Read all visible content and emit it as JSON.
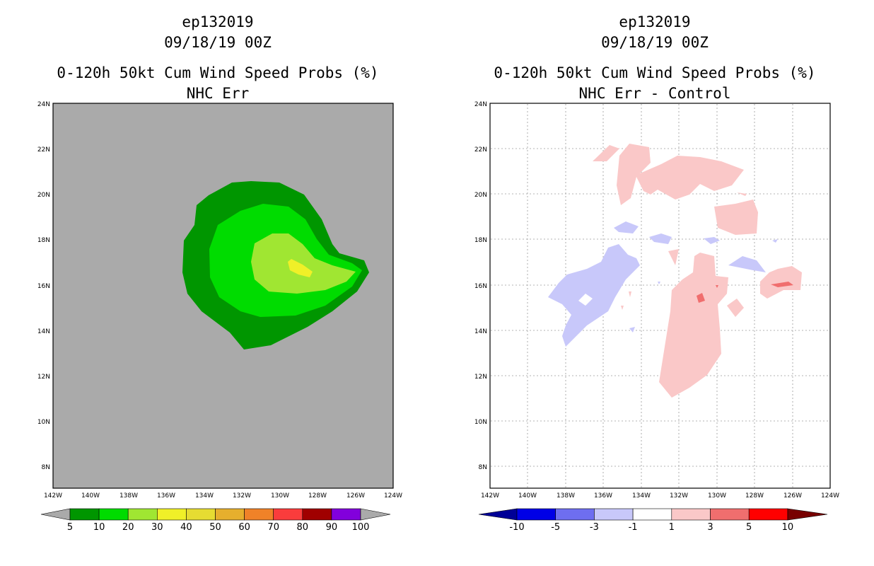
{
  "left_panel": {
    "storm_id": "ep132019",
    "datetime": "09/18/19 00Z",
    "product": "0-120h 50kt Cum Wind Speed Probs (%)",
    "subtitle": "NHC Err",
    "colorbar": {
      "labels": [
        "5",
        "10",
        "20",
        "30",
        "40",
        "50",
        "60",
        "70",
        "80",
        "90",
        "100"
      ],
      "colors": [
        "#009600",
        "#00dc00",
        "#a0e632",
        "#f0f028",
        "#e6dc32",
        "#e6af2d",
        "#f08228",
        "#fa3c3c",
        "#a00000",
        "#8200dc"
      ],
      "under_color": "#aaaaaa",
      "over_color": "#aaaaaa"
    },
    "background_color": "#aaaaaa"
  },
  "right_panel": {
    "storm_id": "ep132019",
    "datetime": "09/18/19 00Z",
    "product": "0-120h 50kt Cum Wind Speed Probs (%)",
    "subtitle": "NHC Err - Control",
    "colorbar": {
      "labels": [
        "-10",
        "-5",
        "-3",
        "-1",
        "1",
        "3",
        "5",
        "10"
      ],
      "colors": [
        "#0000e6",
        "#6e6ef0",
        "#c8c8fa",
        "#ffffff",
        "#fac8c8",
        "#f06e6e",
        "#ff0000"
      ],
      "under_color": "#000096",
      "over_color": "#780000"
    }
  },
  "axes": {
    "lat_labels": [
      "24N",
      "22N",
      "20N",
      "18N",
      "16N",
      "14N",
      "12N",
      "10N",
      "8N"
    ],
    "lon_labels": [
      "142W",
      "140W",
      "138W",
      "136W",
      "134W",
      "132W",
      "130W",
      "128W",
      "126W",
      "124W"
    ]
  }
}
